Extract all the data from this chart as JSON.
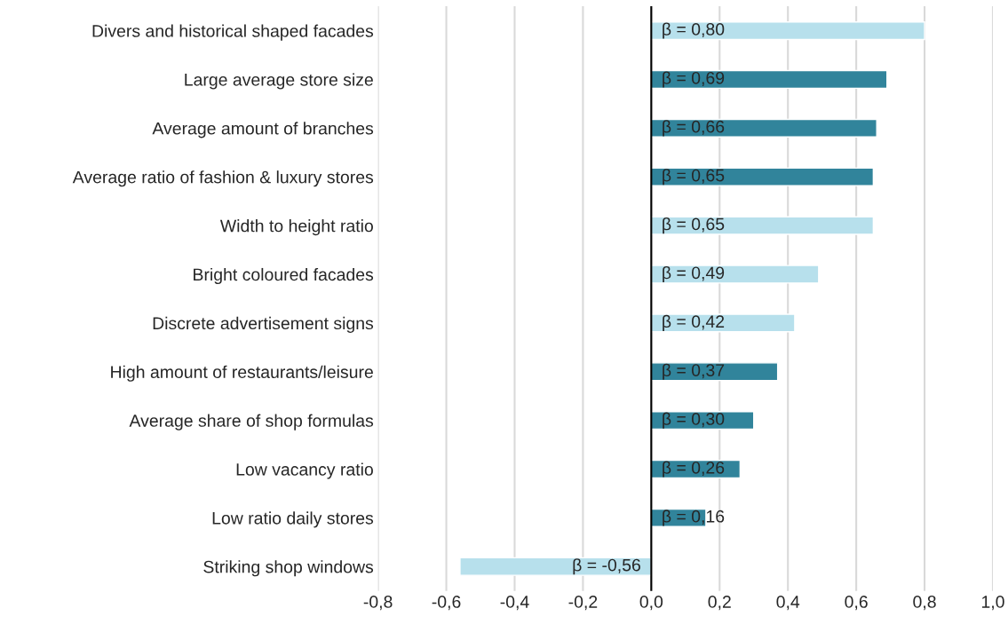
{
  "chart_data": {
    "type": "bar",
    "orientation": "horizontal",
    "categories": [
      "Divers and historical shaped facades",
      "Large average store size",
      "Average amount of branches",
      "Average ratio of fashion & luxury stores",
      "Width to height ratio",
      "Bright coloured facades",
      "Discrete advertisement signs",
      "High amount of restaurants/leisure",
      "Average share of shop formulas",
      "Low vacancy ratio",
      "Low ratio daily stores",
      "Striking shop windows"
    ],
    "values": [
      0.8,
      0.69,
      0.66,
      0.65,
      0.65,
      0.49,
      0.42,
      0.37,
      0.3,
      0.26,
      0.16,
      -0.56
    ],
    "colors": [
      "#b7e0ec",
      "#31849b",
      "#31849b",
      "#31849b",
      "#b7e0ec",
      "#b7e0ec",
      "#b7e0ec",
      "#31849b",
      "#31849b",
      "#31849b",
      "#31849b",
      "#b7e0ec"
    ],
    "value_labels": [
      "β = 0,80",
      "β = 0,69",
      "β = 0,66",
      "β = 0,65",
      "β = 0,65",
      "β = 0,49",
      "β = 0,42",
      "β = 0,37",
      "β = 0,30",
      "β = 0,26",
      "β = 0,16",
      "β = -0,56"
    ],
    "xlim": [
      -0.8,
      1.0
    ],
    "xticks": [
      {
        "value": -0.8,
        "label": "-0,8"
      },
      {
        "value": -0.6,
        "label": "-0,6"
      },
      {
        "value": -0.4,
        "label": "-0,4"
      },
      {
        "value": -0.2,
        "label": "-0,2"
      },
      {
        "value": 0.0,
        "label": "0,0"
      },
      {
        "value": 0.2,
        "label": "0,2"
      },
      {
        "value": 0.4,
        "label": "0,4"
      },
      {
        "value": 0.6,
        "label": "0,6"
      },
      {
        "value": 0.8,
        "label": "0,8"
      },
      {
        "value": 1.0,
        "label": "1,0"
      }
    ],
    "grid": "x",
    "ref_lines": [
      {
        "axis": "x",
        "value": 0,
        "color": "#000000"
      }
    ],
    "legend": false
  }
}
